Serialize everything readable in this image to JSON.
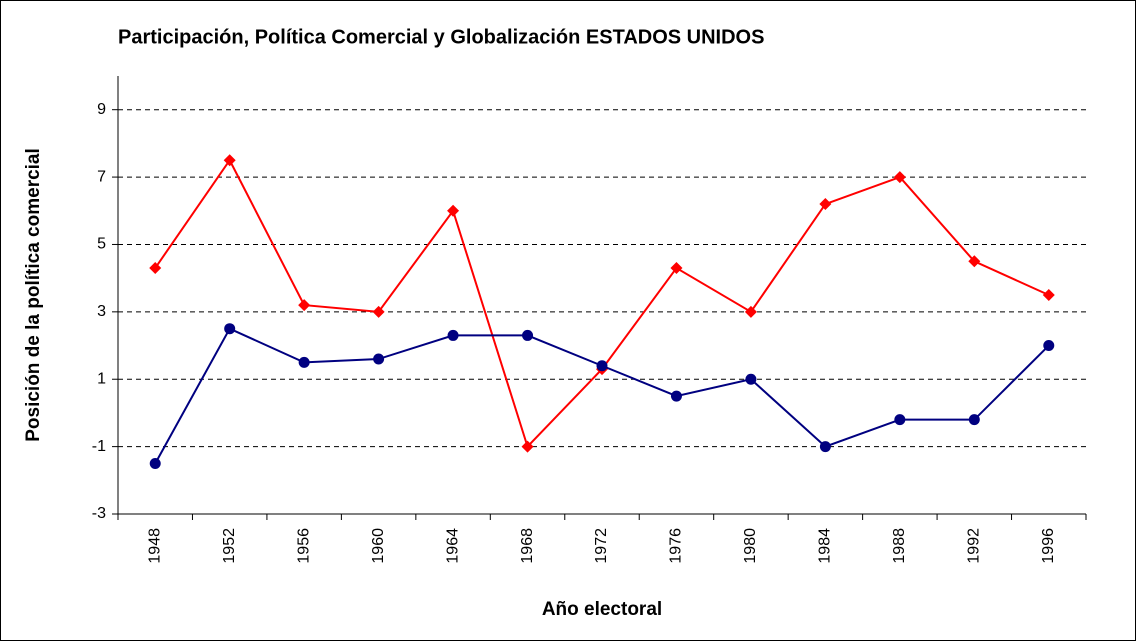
{
  "chart_data": {
    "type": "line",
    "title": "Participación, Política Comercial y Globalización ESTADOS UNIDOS",
    "x_label": "Año electoral",
    "y_label": "Posición de la política comercial",
    "categories": [
      "1948",
      "1952",
      "1956",
      "1960",
      "1964",
      "1968",
      "1972",
      "1976",
      "1980",
      "1984",
      "1988",
      "1992",
      "1996"
    ],
    "series": [
      {
        "color": "#ff0000",
        "marker": "diamond",
        "values": [
          4.3,
          7.5,
          3.2,
          3.0,
          6.0,
          -1.0,
          1.3,
          4.3,
          3.0,
          6.2,
          7.0,
          4.5,
          3.5
        ]
      },
      {
        "color": "#000080",
        "marker": "circle",
        "values": [
          -1.5,
          2.5,
          1.5,
          1.6,
          2.3,
          2.3,
          1.4,
          0.5,
          1.0,
          -1.0,
          -0.2,
          -0.2,
          2.0
        ]
      }
    ],
    "ylim": [
      -3,
      10
    ],
    "yticks": [
      -3,
      -1,
      1,
      3,
      5,
      7,
      9
    ],
    "grid": true
  }
}
